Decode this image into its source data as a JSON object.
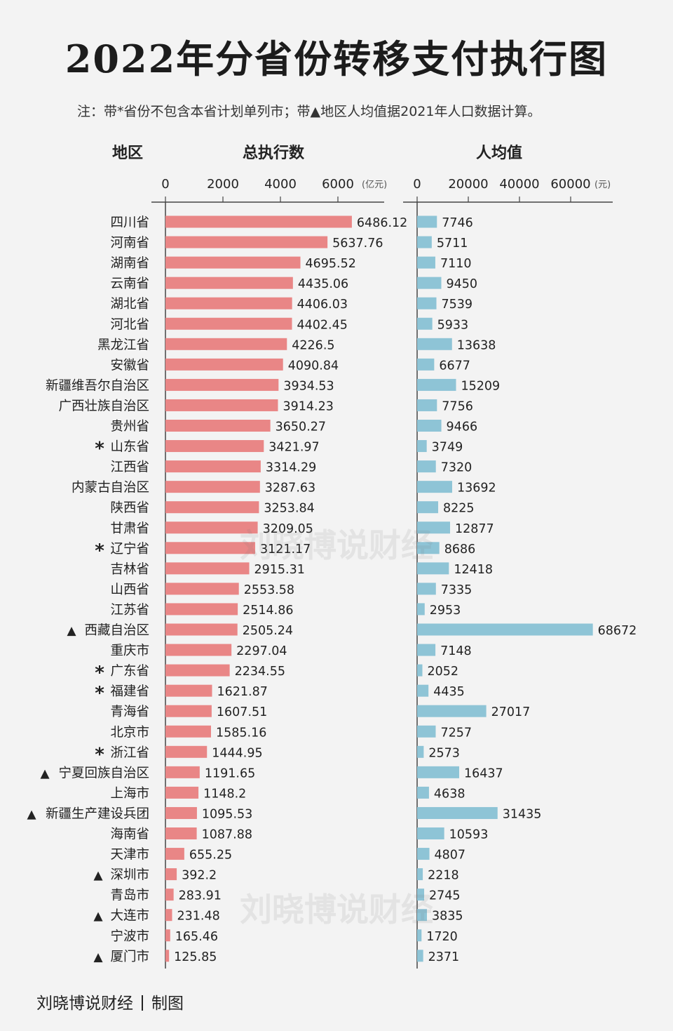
{
  "title": "2022年分省份转移支付执行图",
  "note": "注：带*省份不包含本省计划单列市；带▲地区人均值据2021年人口数据计算。",
  "footer": {
    "source": "刘晓博说财经",
    "made": "制图"
  },
  "watermark": "刘晓博说财经",
  "colors": {
    "total_bar": "#e98686",
    "per_capita_bar": "#8ec4d6",
    "axis": "#444444",
    "text": "#222222"
  },
  "chart_data": [
    {
      "type": "bar",
      "orientation": "horizontal",
      "column_header": "地区",
      "title": "总执行数",
      "unit": "(亿元)",
      "ticks": [
        0,
        2000,
        4000,
        6000
      ],
      "xlim": [
        0,
        7400
      ],
      "categories": [
        "四川省",
        "河南省",
        "湖南省",
        "云南省",
        "湖北省",
        "河北省",
        "黑龙江省",
        "安徽省",
        "新疆维吾尔自治区",
        "广西壮族自治区",
        "贵州省",
        "山东省",
        "江西省",
        "内蒙古自治区",
        "陕西省",
        "甘肃省",
        "辽宁省",
        "吉林省",
        "山西省",
        "江苏省",
        "西藏自治区",
        "重庆市",
        "广东省",
        "福建省",
        "青海省",
        "北京市",
        "浙江省",
        "宁夏回族自治区",
        "上海市",
        "新疆生产建设兵团",
        "海南省",
        "天津市",
        "深圳市",
        "青岛市",
        "大连市",
        "宁波市",
        "厦门市"
      ],
      "markers": [
        "",
        "",
        "",
        "",
        "",
        "",
        "",
        "",
        "",
        "",
        "",
        "*",
        "",
        "",
        "",
        "",
        "*",
        "",
        "",
        "",
        "▲",
        "",
        "*",
        "*",
        "",
        "",
        "*",
        "▲",
        "",
        "▲",
        "",
        "",
        "▲",
        "",
        "▲",
        "",
        "▲"
      ],
      "value_labels": [
        "6486.12",
        "5637.76",
        "4695.52",
        "4435.06",
        "4406.03",
        "4402.45",
        "4226.5",
        "4090.84",
        "3934.53",
        "3914.23",
        "3650.27",
        "3421.97",
        "3314.29",
        "3287.63",
        "3253.84",
        "3209.05",
        "3121.17",
        "2915.31",
        "2553.58",
        "2514.86",
        "2505.24",
        "2297.04",
        "2234.55",
        "1621.87",
        "1607.51",
        "1585.16",
        "1444.95",
        "1191.65",
        "1148.2",
        "1095.53",
        "1087.88",
        "655.25",
        "392.2",
        "283.91",
        "231.48",
        "165.46",
        "125.85"
      ],
      "values": [
        6486.12,
        5637.76,
        4695.52,
        4435.06,
        4406.03,
        4402.45,
        4226.5,
        4090.84,
        3934.53,
        3914.23,
        3650.27,
        3421.97,
        3314.29,
        3287.63,
        3253.84,
        3209.05,
        3121.17,
        2915.31,
        2553.58,
        2514.86,
        2505.24,
        2297.04,
        2234.55,
        1621.87,
        1607.51,
        1585.16,
        1444.95,
        1191.65,
        1148.2,
        1095.53,
        1087.88,
        655.25,
        392.2,
        283.91,
        231.48,
        165.46,
        125.85
      ]
    },
    {
      "type": "bar",
      "orientation": "horizontal",
      "title": "人均值",
      "unit": "(元)",
      "ticks": [
        0,
        20000,
        40000,
        60000
      ],
      "xlim": [
        0,
        76000
      ],
      "values": [
        7746,
        5711,
        7110,
        9450,
        7539,
        5933,
        13638,
        6677,
        15209,
        7756,
        9466,
        3749,
        7320,
        13692,
        8225,
        12877,
        8686,
        12418,
        7335,
        2953,
        68672,
        7148,
        2052,
        4435,
        27017,
        7257,
        2573,
        16437,
        4638,
        31435,
        10593,
        4807,
        2218,
        2745,
        3835,
        1720,
        2371
      ]
    }
  ]
}
